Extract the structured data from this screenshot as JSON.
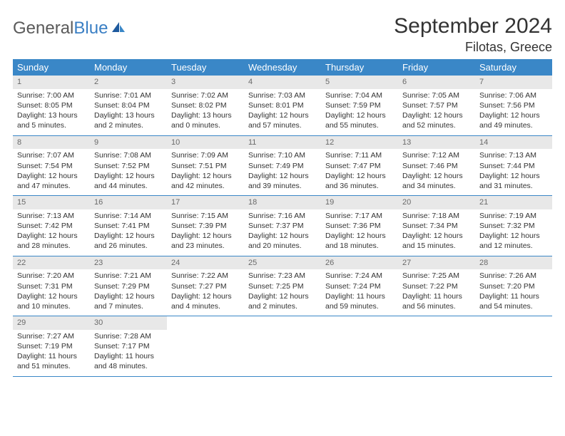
{
  "logo": {
    "part1": "General",
    "part2": "Blue"
  },
  "title": "September 2024",
  "location": "Filotas, Greece",
  "colors": {
    "header_bg": "#3a87c7",
    "header_text": "#ffffff",
    "daynum_bg": "#e8e8e8",
    "daynum_text": "#6a6a6a",
    "body_text": "#333333",
    "rule": "#3a87c7",
    "logo_gray": "#5a5a5a",
    "logo_blue": "#3a7fc4",
    "page_bg": "#ffffff"
  },
  "day_names": [
    "Sunday",
    "Monday",
    "Tuesday",
    "Wednesday",
    "Thursday",
    "Friday",
    "Saturday"
  ],
  "weeks": [
    [
      {
        "n": "1",
        "sr": "Sunrise: 7:00 AM",
        "ss": "Sunset: 8:05 PM",
        "dl": "Daylight: 13 hours and 5 minutes."
      },
      {
        "n": "2",
        "sr": "Sunrise: 7:01 AM",
        "ss": "Sunset: 8:04 PM",
        "dl": "Daylight: 13 hours and 2 minutes."
      },
      {
        "n": "3",
        "sr": "Sunrise: 7:02 AM",
        "ss": "Sunset: 8:02 PM",
        "dl": "Daylight: 13 hours and 0 minutes."
      },
      {
        "n": "4",
        "sr": "Sunrise: 7:03 AM",
        "ss": "Sunset: 8:01 PM",
        "dl": "Daylight: 12 hours and 57 minutes."
      },
      {
        "n": "5",
        "sr": "Sunrise: 7:04 AM",
        "ss": "Sunset: 7:59 PM",
        "dl": "Daylight: 12 hours and 55 minutes."
      },
      {
        "n": "6",
        "sr": "Sunrise: 7:05 AM",
        "ss": "Sunset: 7:57 PM",
        "dl": "Daylight: 12 hours and 52 minutes."
      },
      {
        "n": "7",
        "sr": "Sunrise: 7:06 AM",
        "ss": "Sunset: 7:56 PM",
        "dl": "Daylight: 12 hours and 49 minutes."
      }
    ],
    [
      {
        "n": "8",
        "sr": "Sunrise: 7:07 AM",
        "ss": "Sunset: 7:54 PM",
        "dl": "Daylight: 12 hours and 47 minutes."
      },
      {
        "n": "9",
        "sr": "Sunrise: 7:08 AM",
        "ss": "Sunset: 7:52 PM",
        "dl": "Daylight: 12 hours and 44 minutes."
      },
      {
        "n": "10",
        "sr": "Sunrise: 7:09 AM",
        "ss": "Sunset: 7:51 PM",
        "dl": "Daylight: 12 hours and 42 minutes."
      },
      {
        "n": "11",
        "sr": "Sunrise: 7:10 AM",
        "ss": "Sunset: 7:49 PM",
        "dl": "Daylight: 12 hours and 39 minutes."
      },
      {
        "n": "12",
        "sr": "Sunrise: 7:11 AM",
        "ss": "Sunset: 7:47 PM",
        "dl": "Daylight: 12 hours and 36 minutes."
      },
      {
        "n": "13",
        "sr": "Sunrise: 7:12 AM",
        "ss": "Sunset: 7:46 PM",
        "dl": "Daylight: 12 hours and 34 minutes."
      },
      {
        "n": "14",
        "sr": "Sunrise: 7:13 AM",
        "ss": "Sunset: 7:44 PM",
        "dl": "Daylight: 12 hours and 31 minutes."
      }
    ],
    [
      {
        "n": "15",
        "sr": "Sunrise: 7:13 AM",
        "ss": "Sunset: 7:42 PM",
        "dl": "Daylight: 12 hours and 28 minutes."
      },
      {
        "n": "16",
        "sr": "Sunrise: 7:14 AM",
        "ss": "Sunset: 7:41 PM",
        "dl": "Daylight: 12 hours and 26 minutes."
      },
      {
        "n": "17",
        "sr": "Sunrise: 7:15 AM",
        "ss": "Sunset: 7:39 PM",
        "dl": "Daylight: 12 hours and 23 minutes."
      },
      {
        "n": "18",
        "sr": "Sunrise: 7:16 AM",
        "ss": "Sunset: 7:37 PM",
        "dl": "Daylight: 12 hours and 20 minutes."
      },
      {
        "n": "19",
        "sr": "Sunrise: 7:17 AM",
        "ss": "Sunset: 7:36 PM",
        "dl": "Daylight: 12 hours and 18 minutes."
      },
      {
        "n": "20",
        "sr": "Sunrise: 7:18 AM",
        "ss": "Sunset: 7:34 PM",
        "dl": "Daylight: 12 hours and 15 minutes."
      },
      {
        "n": "21",
        "sr": "Sunrise: 7:19 AM",
        "ss": "Sunset: 7:32 PM",
        "dl": "Daylight: 12 hours and 12 minutes."
      }
    ],
    [
      {
        "n": "22",
        "sr": "Sunrise: 7:20 AM",
        "ss": "Sunset: 7:31 PM",
        "dl": "Daylight: 12 hours and 10 minutes."
      },
      {
        "n": "23",
        "sr": "Sunrise: 7:21 AM",
        "ss": "Sunset: 7:29 PM",
        "dl": "Daylight: 12 hours and 7 minutes."
      },
      {
        "n": "24",
        "sr": "Sunrise: 7:22 AM",
        "ss": "Sunset: 7:27 PM",
        "dl": "Daylight: 12 hours and 4 minutes."
      },
      {
        "n": "25",
        "sr": "Sunrise: 7:23 AM",
        "ss": "Sunset: 7:25 PM",
        "dl": "Daylight: 12 hours and 2 minutes."
      },
      {
        "n": "26",
        "sr": "Sunrise: 7:24 AM",
        "ss": "Sunset: 7:24 PM",
        "dl": "Daylight: 11 hours and 59 minutes."
      },
      {
        "n": "27",
        "sr": "Sunrise: 7:25 AM",
        "ss": "Sunset: 7:22 PM",
        "dl": "Daylight: 11 hours and 56 minutes."
      },
      {
        "n": "28",
        "sr": "Sunrise: 7:26 AM",
        "ss": "Sunset: 7:20 PM",
        "dl": "Daylight: 11 hours and 54 minutes."
      }
    ],
    [
      {
        "n": "29",
        "sr": "Sunrise: 7:27 AM",
        "ss": "Sunset: 7:19 PM",
        "dl": "Daylight: 11 hours and 51 minutes."
      },
      {
        "n": "30",
        "sr": "Sunrise: 7:28 AM",
        "ss": "Sunset: 7:17 PM",
        "dl": "Daylight: 11 hours and 48 minutes."
      },
      null,
      null,
      null,
      null,
      null
    ]
  ]
}
